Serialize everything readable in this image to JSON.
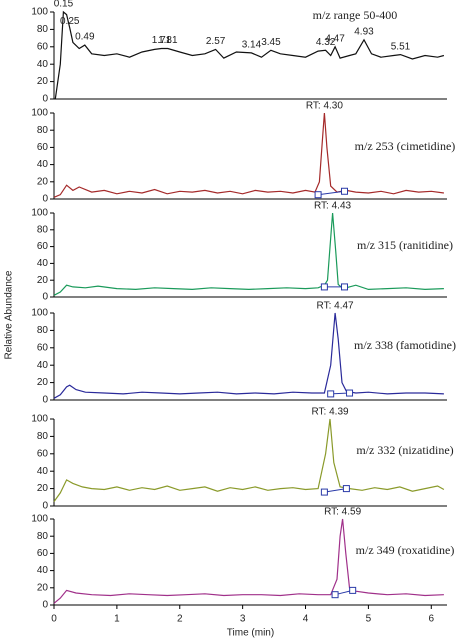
{
  "y_axis_label": "Relative Abundance",
  "chart_data": [
    {
      "type": "line",
      "annotation": "m/z range 50-400",
      "color": "#111111",
      "ylim": [
        0,
        100
      ],
      "yticks": [
        0,
        20,
        40,
        60,
        80,
        100
      ],
      "xlim": [
        0,
        6.25
      ],
      "x": [
        0.02,
        0.1,
        0.15,
        0.2,
        0.25,
        0.3,
        0.4,
        0.49,
        0.6,
        0.8,
        1.0,
        1.2,
        1.4,
        1.6,
        1.71,
        1.81,
        2.0,
        2.2,
        2.4,
        2.57,
        2.7,
        2.9,
        3.14,
        3.3,
        3.45,
        3.6,
        3.8,
        4.0,
        4.2,
        4.32,
        4.4,
        4.47,
        4.55,
        4.7,
        4.8,
        4.93,
        5.05,
        5.2,
        5.4,
        5.51,
        5.7,
        5.9,
        6.1,
        6.2
      ],
      "values": [
        0,
        40,
        100,
        97,
        82,
        65,
        58,
        62,
        52,
        50,
        52,
        48,
        54,
        57,
        58,
        58,
        54,
        50,
        52,
        57,
        47,
        54,
        53,
        48,
        56,
        52,
        50,
        48,
        55,
        56,
        50,
        60,
        47,
        50,
        52,
        68,
        52,
        48,
        50,
        51,
        46,
        50,
        48,
        50
      ],
      "peak_labels": {
        "x": [
          0.15,
          0.25,
          0.49,
          1.71,
          1.81,
          2.57,
          3.14,
          3.45,
          4.32,
          4.47,
          4.93,
          5.51
        ],
        "y": [
          100,
          80,
          62,
          58,
          58,
          57,
          53,
          56,
          56,
          60,
          68,
          51
        ]
      }
    },
    {
      "type": "line",
      "annotation": "m/z 253 (cimetidine)",
      "rt_label": "RT: 4.30",
      "color": "#a52a2a",
      "ylim": [
        0,
        100
      ],
      "yticks": [
        0,
        20,
        40,
        60,
        80,
        100
      ],
      "xlim": [
        0,
        6.25
      ],
      "x": [
        0.0,
        0.1,
        0.2,
        0.3,
        0.4,
        0.6,
        0.8,
        1.0,
        1.2,
        1.4,
        1.6,
        1.8,
        2.0,
        2.2,
        2.4,
        2.6,
        2.8,
        3.0,
        3.2,
        3.4,
        3.6,
        3.8,
        4.0,
        4.15,
        4.22,
        4.27,
        4.3,
        4.34,
        4.4,
        4.5,
        4.65,
        4.8,
        5.0,
        5.2,
        5.4,
        5.6,
        5.8,
        6.0,
        6.2
      ],
      "values": [
        2,
        5,
        16,
        10,
        14,
        8,
        10,
        6,
        9,
        7,
        11,
        6,
        9,
        8,
        10,
        7,
        9,
        6,
        10,
        8,
        9,
        7,
        10,
        8,
        20,
        70,
        100,
        60,
        15,
        8,
        10,
        8,
        7,
        9,
        6,
        10,
        8,
        9,
        7
      ],
      "integration": {
        "x": [
          4.2,
          4.62
        ],
        "y": [
          5,
          9
        ]
      }
    },
    {
      "type": "line",
      "annotation": "m/z 315 (ranitidine)",
      "rt_label": "RT: 4.43",
      "color": "#1a9a5a",
      "ylim": [
        0,
        100
      ],
      "yticks": [
        0,
        20,
        40,
        60,
        80,
        100
      ],
      "xlim": [
        0,
        6.25
      ],
      "x": [
        0.0,
        0.1,
        0.2,
        0.3,
        0.5,
        0.7,
        1.0,
        1.3,
        1.6,
        1.9,
        2.2,
        2.5,
        2.8,
        3.1,
        3.4,
        3.7,
        4.0,
        4.2,
        4.3,
        4.35,
        4.38,
        4.43,
        4.48,
        4.52,
        4.6,
        4.8,
        5.0,
        5.3,
        5.6,
        5.9,
        6.2
      ],
      "values": [
        2,
        6,
        14,
        12,
        11,
        13,
        10,
        9,
        11,
        10,
        9,
        11,
        10,
        9,
        10,
        11,
        10,
        11,
        14,
        20,
        50,
        100,
        55,
        15,
        10,
        14,
        9,
        10,
        11,
        9,
        10
      ],
      "integration": {
        "x": [
          4.3,
          4.62
        ],
        "y": [
          12,
          12
        ]
      }
    },
    {
      "type": "line",
      "annotation": "m/z 338 (famotidine)",
      "rt_label": "RT: 4.47",
      "color": "#2a2a9a",
      "ylim": [
        0,
        100
      ],
      "yticks": [
        0,
        20,
        40,
        60,
        80,
        100
      ],
      "xlim": [
        0,
        6.25
      ],
      "x": [
        0.0,
        0.1,
        0.2,
        0.25,
        0.35,
        0.5,
        0.8,
        1.1,
        1.4,
        1.7,
        2.0,
        2.3,
        2.6,
        2.9,
        3.2,
        3.5,
        3.8,
        4.1,
        4.3,
        4.4,
        4.47,
        4.52,
        4.58,
        4.65,
        4.8,
        5.0,
        5.3,
        5.6,
        5.9,
        6.2
      ],
      "values": [
        2,
        6,
        15,
        17,
        12,
        9,
        8,
        7,
        9,
        8,
        7,
        8,
        9,
        7,
        8,
        7,
        9,
        8,
        8,
        40,
        100,
        70,
        20,
        10,
        8,
        9,
        7,
        8,
        8,
        7
      ],
      "integration": {
        "x": [
          4.4,
          4.7
        ],
        "y": [
          7,
          8
        ]
      }
    },
    {
      "type": "line",
      "annotation": "m/z 332 (nizatidine)",
      "rt_label": "RT: 4.39",
      "color": "#8a9a2a",
      "ylim": [
        0,
        100
      ],
      "yticks": [
        0,
        20,
        40,
        60,
        80,
        100
      ],
      "xlim": [
        0,
        6.25
      ],
      "x": [
        0.0,
        0.1,
        0.2,
        0.3,
        0.45,
        0.6,
        0.8,
        1.0,
        1.2,
        1.4,
        1.6,
        1.8,
        2.0,
        2.2,
        2.4,
        2.6,
        2.8,
        3.0,
        3.2,
        3.4,
        3.6,
        3.8,
        4.0,
        4.2,
        4.32,
        4.39,
        4.45,
        4.55,
        4.7,
        4.9,
        5.1,
        5.3,
        5.5,
        5.7,
        5.9,
        6.1,
        6.2
      ],
      "values": [
        5,
        15,
        30,
        26,
        22,
        20,
        19,
        22,
        18,
        21,
        19,
        23,
        18,
        20,
        22,
        17,
        21,
        19,
        22,
        18,
        20,
        21,
        19,
        20,
        60,
        100,
        50,
        22,
        20,
        18,
        21,
        19,
        22,
        17,
        20,
        23,
        19
      ],
      "integration": {
        "x": [
          4.3,
          4.65
        ],
        "y": [
          16,
          20
        ]
      }
    },
    {
      "type": "line",
      "annotation": "m/z 349 (roxatidine)",
      "rt_label": "RT: 4.59",
      "color": "#a0308a",
      "ylim": [
        0,
        100
      ],
      "yticks": [
        0,
        20,
        40,
        60,
        80,
        100
      ],
      "xlim": [
        0,
        6.25
      ],
      "x": [
        0.0,
        0.1,
        0.2,
        0.35,
        0.6,
        0.9,
        1.2,
        1.5,
        1.8,
        2.1,
        2.4,
        2.7,
        3.0,
        3.3,
        3.6,
        3.9,
        4.2,
        4.4,
        4.5,
        4.55,
        4.59,
        4.64,
        4.7,
        4.8,
        5.0,
        5.3,
        5.6,
        5.9,
        6.2
      ],
      "values": [
        2,
        8,
        17,
        14,
        12,
        11,
        13,
        12,
        11,
        12,
        13,
        11,
        12,
        12,
        11,
        13,
        12,
        12,
        30,
        80,
        100,
        60,
        20,
        16,
        14,
        12,
        13,
        11,
        12
      ],
      "integration": {
        "x": [
          4.47,
          4.75
        ],
        "y": [
          12,
          17
        ]
      },
      "xticks": [
        0,
        1,
        2,
        3,
        4,
        5,
        6
      ],
      "x_label": "Time (min)"
    }
  ]
}
